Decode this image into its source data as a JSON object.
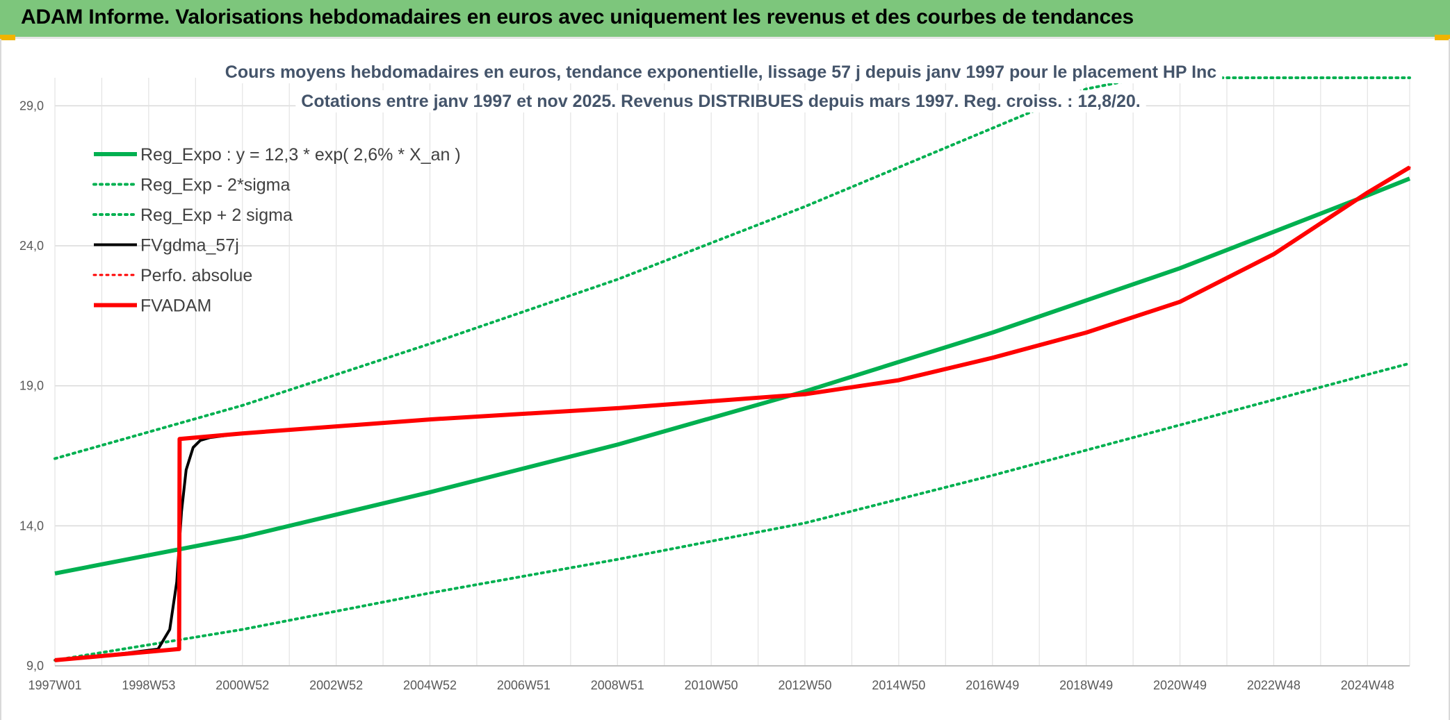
{
  "header": {
    "title": "ADAM Informe. Valorisations hebdomadaires en euros avec uniquement les revenus et des courbes de tendances"
  },
  "colors": {
    "header_bg": "#7dc67c",
    "green": "#00b050",
    "red": "#ff0000",
    "black": "#000000",
    "grid": "#d9d9d9",
    "title": "#44546a"
  },
  "chart_data": {
    "type": "line",
    "title_lines": [
      "Cours moyens hebdomadaires en euros, tendance exponentielle, lissage 57 j depuis janv 1997 pour le placement HP Inc",
      "Cotations entre janv 1997 et nov 2025. Revenus DISTRIBUES depuis mars 1997. Reg. croiss. : 12,8/20."
    ],
    "xlabel": "",
    "ylabel": "",
    "xlim": [
      1997.0,
      2025.9
    ],
    "ylim": [
      9.0,
      30.0
    ],
    "y_ticks": [
      9.0,
      14.0,
      19.0,
      24.0,
      29.0
    ],
    "y_tick_labels": [
      "9,0",
      "14,0",
      "19,0",
      "24,0",
      "29,0"
    ],
    "x_tick_labels": [
      "1997W01",
      "1998W53",
      "2000W52",
      "2002W52",
      "2004W52",
      "2006W51",
      "2008W51",
      "2010W50",
      "2012W50",
      "2014W50",
      "2016W49",
      "2018W49",
      "2020W49",
      "2022W48",
      "2024W48"
    ],
    "x_tick_years": [
      1997.0,
      1999.0,
      2001.0,
      2003.0,
      2005.0,
      2007.0,
      2009.0,
      2011.0,
      2013.0,
      2015.0,
      2017.0,
      2019.0,
      2021.0,
      2023.0,
      2025.0
    ],
    "legend": [
      {
        "label": "Reg_Expo : y = 12,3 * exp( 2,6% *  X_an )",
        "color": "#00b050",
        "style": "solid",
        "width": 6
      },
      {
        "label": "Reg_Exp - 2*sigma",
        "color": "#00b050",
        "style": "dotted",
        "width": 4
      },
      {
        "label": "Reg_Exp + 2 sigma",
        "color": "#00b050",
        "style": "dotted",
        "width": 4
      },
      {
        "label": "FVgdma_57j",
        "color": "#000000",
        "style": "solid",
        "width": 4
      },
      {
        "label": "Perfo. absolue",
        "color": "#ff0000",
        "style": "dotted",
        "width": 3
      },
      {
        "label": "FVADAM",
        "color": "#ff0000",
        "style": "solid",
        "width": 6
      }
    ],
    "series": [
      {
        "name": "Reg_Expo : y = 12,3 * exp( 2,6% *  X_an )",
        "x": [
          1997.0,
          2001.0,
          2005.0,
          2009.0,
          2013.0,
          2017.0,
          2021.0,
          2025.0,
          2025.9
        ],
        "values": [
          12.3,
          13.6,
          15.2,
          16.9,
          18.8,
          20.9,
          23.2,
          25.8,
          26.4
        ]
      },
      {
        "name": "Reg_Exp - 2*sigma",
        "x": [
          1997.0,
          2001.0,
          2005.0,
          2009.0,
          2013.0,
          2017.0,
          2021.0,
          2025.0,
          2025.9
        ],
        "values": [
          9.2,
          10.3,
          11.6,
          12.8,
          14.1,
          15.8,
          17.6,
          19.4,
          19.8
        ]
      },
      {
        "name": "Reg_Exp + 2 sigma",
        "x": [
          1997.0,
          2001.0,
          2005.0,
          2009.0,
          2013.0,
          2017.0,
          2019.0,
          2020.2,
          2025.9
        ],
        "values": [
          16.4,
          18.3,
          20.5,
          22.8,
          25.4,
          28.2,
          29.6,
          30.0,
          30.0
        ]
      },
      {
        "name": "FVgdma_57j",
        "x": [
          1997.0,
          1998.5,
          1999.2,
          1999.45,
          1999.6,
          1999.7,
          1999.8,
          1999.95,
          2000.1,
          2000.3,
          2001.0,
          2005.0,
          2009.0,
          2013.0,
          2015.0,
          2017.0,
          2019.0,
          2021.0,
          2023.0,
          2025.0,
          2025.9
        ],
        "values": [
          9.2,
          9.45,
          9.6,
          10.3,
          12.0,
          14.5,
          16.0,
          16.8,
          17.05,
          17.15,
          17.3,
          17.8,
          18.2,
          18.7,
          19.2,
          20.0,
          20.9,
          22.0,
          23.7,
          25.9,
          26.8
        ]
      },
      {
        "name": "Perfo. absolue",
        "x": [
          1997.0,
          1999.65,
          1999.66,
          2001.0,
          2005.0,
          2009.0,
          2013.0,
          2015.0,
          2017.0,
          2019.0,
          2021.0,
          2023.0,
          2025.0,
          2025.9
        ],
        "values": [
          9.2,
          9.6,
          17.1,
          17.3,
          17.8,
          18.2,
          18.7,
          19.2,
          20.0,
          20.9,
          22.0,
          23.7,
          25.9,
          26.8
        ]
      },
      {
        "name": "FVADAM",
        "x": [
          1997.0,
          1999.65,
          1999.66,
          2001.0,
          2005.0,
          2009.0,
          2013.0,
          2015.0,
          2017.0,
          2019.0,
          2021.0,
          2023.0,
          2025.0,
          2025.9
        ],
        "values": [
          9.2,
          9.6,
          17.1,
          17.3,
          17.8,
          18.2,
          18.7,
          19.2,
          20.0,
          20.9,
          22.0,
          23.7,
          25.9,
          26.8
        ]
      }
    ]
  }
}
